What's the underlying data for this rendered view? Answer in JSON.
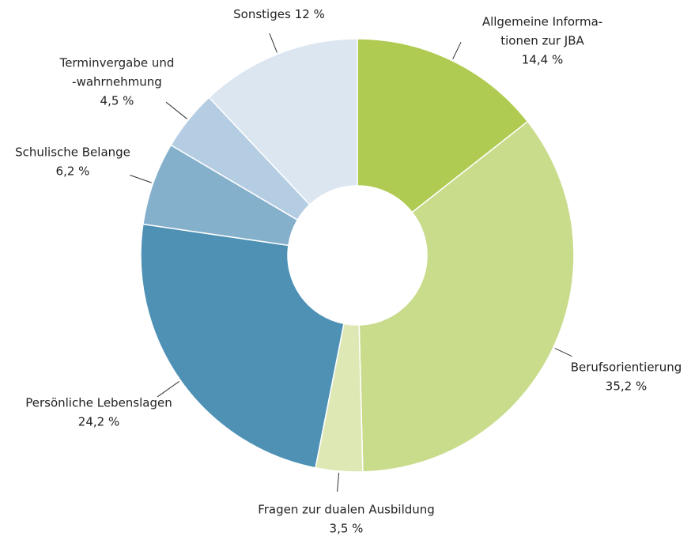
{
  "chart_data": {
    "type": "donut",
    "categories": [
      [
        "Allgemeine Informa-",
        "tionen zur JBA"
      ],
      [
        "Berufsorientierung"
      ],
      [
        "Fragen zur dualen Ausbildung"
      ],
      [
        "Persönliche Lebenslagen"
      ],
      [
        "Schulische Belange"
      ],
      [
        "Terminvergabe und",
        "-wahrnehmung"
      ],
      [
        "Sonstiges"
      ]
    ],
    "values": [
      14.4,
      35.2,
      3.5,
      24.2,
      6.2,
      4.5,
      12
    ],
    "value_labels": [
      "14,4 %",
      "35,2 %",
      "3,5 %",
      "24,2 %",
      "6,2 %",
      "4,5 %",
      "12 %"
    ],
    "colors": [
      "#b0cb52",
      "#c9dc8c",
      "#dde8b5",
      "#4e91b5",
      "#85b0cc",
      "#b5cde3",
      "#dce6f0"
    ]
  }
}
